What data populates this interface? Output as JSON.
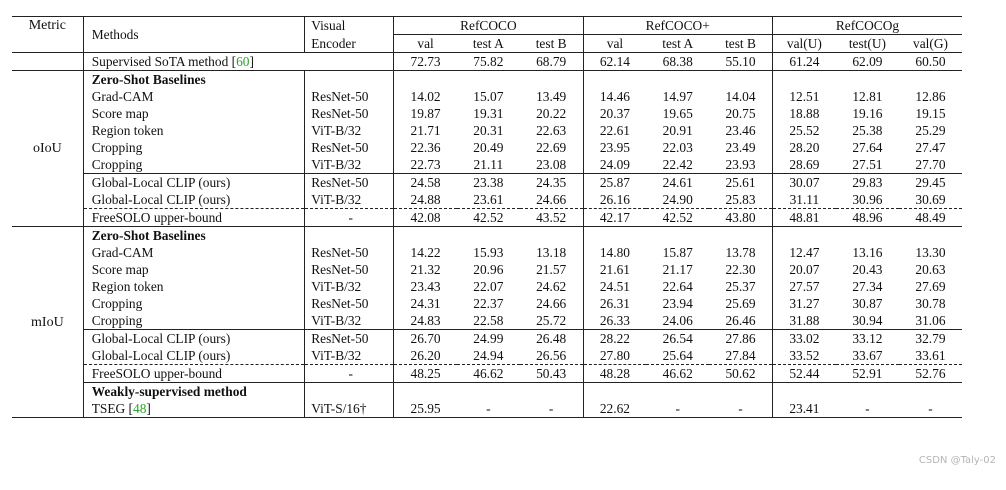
{
  "header": {
    "metric": "Metric",
    "methods": "Methods",
    "visual_encoder_line1": "Visual",
    "visual_encoder_line2": "Encoder",
    "groups": [
      "RefCOCO",
      "RefCOCO+",
      "RefCOCOg"
    ],
    "subcols": [
      "val",
      "test A",
      "test B",
      "val",
      "test A",
      "test B",
      "val(U)",
      "test(U)",
      "val(G)"
    ]
  },
  "supervised": {
    "label": "Supervised SoTA method [",
    "cite": "60",
    "close": "]",
    "values": [
      "72.73",
      "75.82",
      "68.79",
      "62.14",
      "68.38",
      "55.10",
      "61.24",
      "62.09",
      "60.50"
    ]
  },
  "oiou": {
    "metric": "oIoU",
    "section_title": "Zero-Shot Baselines",
    "baselines": [
      {
        "method": "Grad-CAM",
        "encoder": "ResNet-50",
        "values": [
          "14.02",
          "15.07",
          "13.49",
          "14.46",
          "14.97",
          "14.04",
          "12.51",
          "12.81",
          "12.86"
        ]
      },
      {
        "method": "Score map",
        "encoder": "ResNet-50",
        "values": [
          "19.87",
          "19.31",
          "20.22",
          "20.37",
          "19.65",
          "20.75",
          "18.88",
          "19.16",
          "19.15"
        ]
      },
      {
        "method": "Region token",
        "encoder": "ViT-B/32",
        "values": [
          "21.71",
          "20.31",
          "22.63",
          "22.61",
          "20.91",
          "23.46",
          "25.52",
          "25.38",
          "25.29"
        ]
      },
      {
        "method": "Cropping",
        "encoder": "ResNet-50",
        "values": [
          "22.36",
          "20.49",
          "22.69",
          "23.95",
          "22.03",
          "23.49",
          "28.20",
          "27.64",
          "27.47"
        ]
      },
      {
        "method": "Cropping",
        "encoder": "ViT-B/32",
        "values": [
          "22.73",
          "21.11",
          "23.08",
          "24.09",
          "22.42",
          "23.93",
          "28.69",
          "27.51",
          "27.70"
        ]
      }
    ],
    "ours": [
      {
        "method": "Global-Local CLIP (ours)",
        "encoder": "ResNet-50",
        "values": [
          "24.58",
          "23.38",
          "24.35",
          "25.87",
          "24.61",
          "25.61",
          "30.07",
          "29.83",
          "29.45"
        ],
        "bold": [
          false,
          false,
          false,
          false,
          false,
          false,
          false,
          false,
          false
        ]
      },
      {
        "method": "Global-Local CLIP (ours)",
        "encoder": "ViT-B/32",
        "values": [
          "24.88",
          "23.61",
          "24.66",
          "26.16",
          "24.90",
          "25.83",
          "31.11",
          "30.96",
          "30.69"
        ],
        "bold": [
          true,
          true,
          true,
          true,
          true,
          true,
          true,
          true,
          true
        ]
      }
    ],
    "upper": {
      "method": "FreeSOLO upper-bound",
      "encoder": "-",
      "values": [
        "42.08",
        "42.52",
        "43.52",
        "42.17",
        "42.52",
        "43.80",
        "48.81",
        "48.96",
        "48.49"
      ]
    }
  },
  "miou": {
    "metric": "mIoU",
    "section_title": "Zero-Shot Baselines",
    "baselines": [
      {
        "method": "Grad-CAM",
        "encoder": "ResNet-50",
        "values": [
          "14.22",
          "15.93",
          "13.18",
          "14.80",
          "15.87",
          "13.78",
          "12.47",
          "13.16",
          "13.30"
        ]
      },
      {
        "method": "Score map",
        "encoder": "ResNet-50",
        "values": [
          "21.32",
          "20.96",
          "21.57",
          "21.61",
          "21.17",
          "22.30",
          "20.07",
          "20.43",
          "20.63"
        ]
      },
      {
        "method": "Region token",
        "encoder": "ViT-B/32",
        "values": [
          "23.43",
          "22.07",
          "24.62",
          "24.51",
          "22.64",
          "25.37",
          "27.57",
          "27.34",
          "27.69"
        ]
      },
      {
        "method": "Cropping",
        "encoder": "ResNet-50",
        "values": [
          "24.31",
          "22.37",
          "24.66",
          "26.31",
          "23.94",
          "25.69",
          "31.27",
          "30.87",
          "30.78"
        ]
      },
      {
        "method": "Cropping",
        "encoder": "ViT-B/32",
        "values": [
          "24.83",
          "22.58",
          "25.72",
          "26.33",
          "24.06",
          "26.46",
          "31.88",
          "30.94",
          "31.06"
        ]
      }
    ],
    "ours": [
      {
        "method": "Global-Local CLIP (ours)",
        "encoder": "ResNet-50",
        "values": [
          "26.70",
          "24.99",
          "26.48",
          "28.22",
          "26.54",
          "27.86",
          "33.02",
          "33.12",
          "32.79"
        ],
        "bold": [
          true,
          true,
          false,
          true,
          true,
          true,
          false,
          false,
          false
        ]
      },
      {
        "method": "Global-Local CLIP (ours)",
        "encoder": "ViT-B/32",
        "values": [
          "26.20",
          "24.94",
          "26.56",
          "27.80",
          "25.64",
          "27.84",
          "33.52",
          "33.67",
          "33.61"
        ],
        "bold": [
          false,
          false,
          true,
          false,
          false,
          false,
          true,
          true,
          true
        ]
      }
    ],
    "upper": {
      "method": "FreeSOLO upper-bound",
      "encoder": "-",
      "values": [
        "48.25",
        "46.62",
        "50.43",
        "48.28",
        "46.62",
        "50.62",
        "52.44",
        "52.91",
        "52.76"
      ]
    },
    "weak_title": "Weakly-supervised method",
    "tseg": {
      "method": "TSEG [",
      "cite": "48",
      "close": "]",
      "encoder": "ViT-S/16†",
      "values": [
        "25.95",
        "-",
        "-",
        "22.62",
        "-",
        "-",
        "23.41",
        "-",
        "-"
      ]
    }
  },
  "watermark": "CSDN @Taly-02"
}
